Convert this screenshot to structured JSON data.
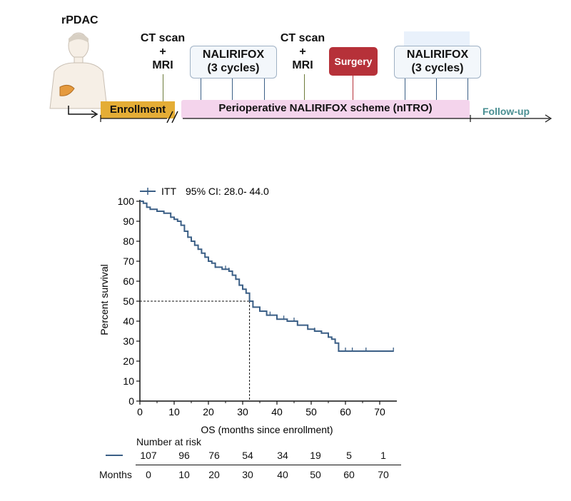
{
  "timeline": {
    "patient_label": "rPDAC",
    "ct1": [
      "CT scan",
      "+",
      "MRI"
    ],
    "ct2": [
      "CT scan",
      "+",
      "MRI"
    ],
    "nalirifox1": [
      "NALIRIFOX",
      "(3 cycles)"
    ],
    "nalirifox2": [
      "NALIRIFOX",
      "(3 cycles)"
    ],
    "surgery": "Surgery",
    "enrollment": "Enrollment",
    "perioperative": "Perioperative NALIRIFOX scheme (nITRO)",
    "followup": "Follow-up",
    "colors": {
      "enrollment": "#e4ad36",
      "perioperative": "#f4d4ec",
      "surgery": "#b63139",
      "followup": "#4a8f92"
    }
  },
  "chart_data": {
    "type": "line",
    "legend": {
      "label": "ITT",
      "ci": "95% CI: 28.0- 44.0",
      "placement": "top-left"
    },
    "xlabel": "OS (months since enrollment)",
    "ylabel": "Percent survival",
    "xlim": [
      0,
      75
    ],
    "ylim": [
      0,
      100
    ],
    "xticks": [
      0,
      10,
      20,
      30,
      40,
      50,
      60,
      70
    ],
    "yticks": [
      0,
      10,
      20,
      30,
      40,
      50,
      60,
      70,
      80,
      90,
      100
    ],
    "median_line": {
      "y": 50,
      "x": 32
    },
    "series": [
      {
        "name": "ITT",
        "color": "#3b5f86",
        "x": [
          0,
          1,
          2,
          3,
          5,
          7,
          9,
          10,
          11,
          12,
          13,
          14,
          15,
          16,
          17,
          18,
          19,
          20,
          21,
          22,
          24,
          26,
          27,
          28,
          29,
          30,
          31,
          32,
          33,
          35,
          37,
          40,
          43,
          46,
          49,
          51,
          53,
          55,
          56,
          57,
          58,
          74
        ],
        "y": [
          100,
          99,
          97,
          96,
          95,
          94,
          92,
          91,
          90,
          88,
          85,
          82,
          80,
          78,
          76,
          74,
          72,
          70,
          69,
          67,
          66,
          65,
          63,
          61,
          58,
          56,
          54,
          50,
          47,
          45,
          43,
          41,
          40,
          38,
          36,
          35,
          34,
          32,
          31,
          29,
          25,
          25
        ]
      }
    ],
    "censor_x": [
      22,
      25,
      26,
      38,
      42,
      45,
      51,
      58,
      60,
      62,
      66,
      74
    ],
    "risk_table": {
      "title": "Number at risk",
      "row_label": "Months",
      "counts": [
        "107",
        "96",
        "76",
        "54",
        "34",
        "19",
        "5",
        "1"
      ],
      "months": [
        "0",
        "10",
        "20",
        "30",
        "40",
        "50",
        "60",
        "70"
      ]
    }
  }
}
